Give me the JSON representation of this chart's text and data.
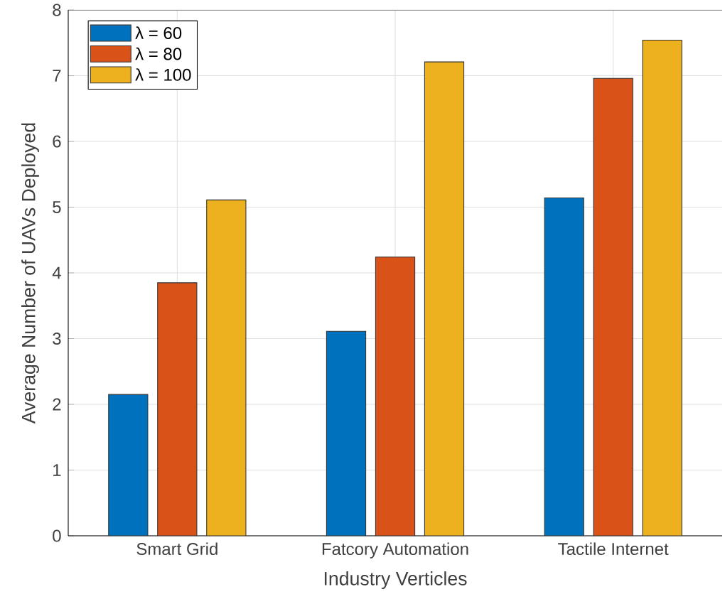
{
  "chart_data": {
    "type": "bar",
    "xlabel": "Industry Verticles",
    "ylabel": "Average Number of UAVs Deployed",
    "categories": [
      "Smart Grid",
      "Fatcory Automation",
      "Tactile Internet"
    ],
    "series": [
      {
        "name": "λ = 60",
        "color": "#0072bd",
        "values": [
          2.15,
          3.11,
          5.14
        ]
      },
      {
        "name": "λ = 80",
        "color": "#d95319",
        "values": [
          3.85,
          4.24,
          6.96
        ]
      },
      {
        "name": "λ = 100",
        "color": "#edb120",
        "values": [
          5.11,
          7.21,
          7.54
        ]
      }
    ],
    "ylim": [
      0,
      8
    ],
    "yticks": [
      0,
      1,
      2,
      3,
      4,
      5,
      6,
      7,
      8
    ],
    "grid": true,
    "legend": "top left"
  }
}
